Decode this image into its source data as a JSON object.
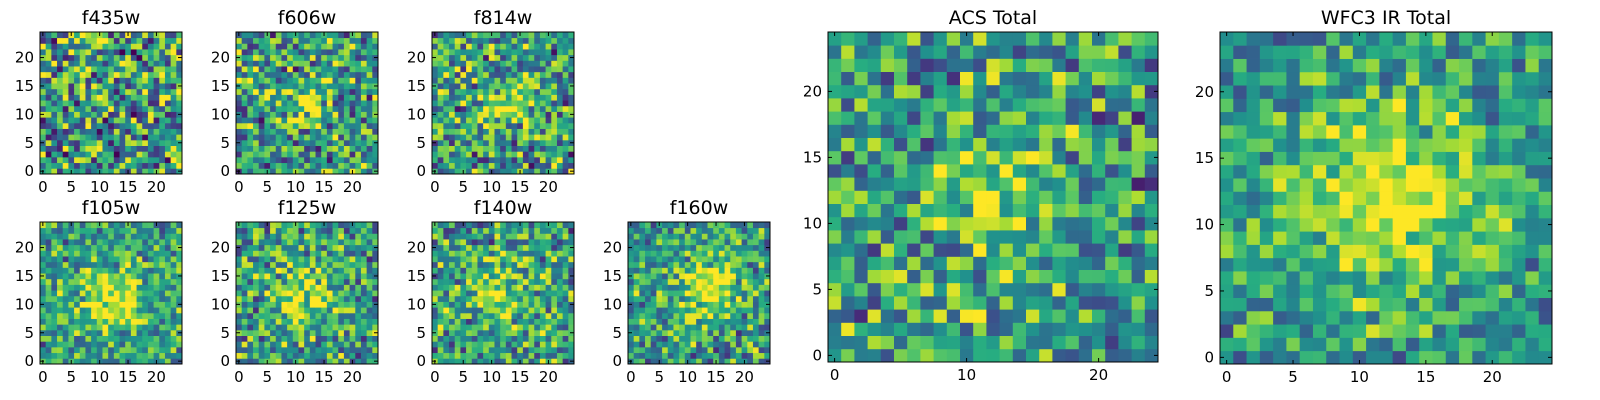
{
  "colormap": "viridis",
  "chart_data": [
    {
      "type": "heatmap",
      "title": "f435w",
      "grid_size": 25,
      "xlim": [
        -0.5,
        24.5
      ],
      "ylim": [
        -0.5,
        24.5
      ],
      "xticks": [
        0,
        5,
        10,
        15,
        20
      ],
      "yticks": [
        0,
        5,
        10,
        15,
        20
      ],
      "seed": 11,
      "blob": {
        "x": 12,
        "y": 12,
        "sigma": 5,
        "amp": 0.05
      },
      "noise": 0.95
    },
    {
      "type": "heatmap",
      "title": "f606w",
      "grid_size": 25,
      "xlim": [
        -0.5,
        24.5
      ],
      "ylim": [
        -0.5,
        24.5
      ],
      "xticks": [
        0,
        5,
        10,
        15,
        20
      ],
      "yticks": [
        0,
        5,
        10,
        15,
        20
      ],
      "seed": 23,
      "blob": {
        "x": 12,
        "y": 12,
        "sigma": 2.5,
        "amp": 0.35
      },
      "noise": 0.8
    },
    {
      "type": "heatmap",
      "title": "f814w",
      "grid_size": 25,
      "xlim": [
        -0.5,
        24.5
      ],
      "ylim": [
        -0.5,
        24.5
      ],
      "xticks": [
        0,
        5,
        10,
        15,
        20
      ],
      "yticks": [
        0,
        5,
        10,
        15,
        20
      ],
      "seed": 37,
      "blob": {
        "x": 13,
        "y": 12,
        "sigma": 3,
        "amp": 0.4
      },
      "noise": 0.8
    },
    {
      "type": "heatmap",
      "title": "f105w",
      "grid_size": 25,
      "xlim": [
        -0.5,
        24.5
      ],
      "ylim": [
        -0.5,
        24.5
      ],
      "xticks": [
        0,
        5,
        10,
        15,
        20
      ],
      "yticks": [
        0,
        5,
        10,
        15,
        20
      ],
      "seed": 41,
      "blob": {
        "x": 12,
        "y": 11,
        "sigma": 4,
        "amp": 0.45
      },
      "noise": 0.6
    },
    {
      "type": "heatmap",
      "title": "f125w",
      "grid_size": 25,
      "xlim": [
        -0.5,
        24.5
      ],
      "ylim": [
        -0.5,
        24.5
      ],
      "xticks": [
        0,
        5,
        10,
        15,
        20
      ],
      "yticks": [
        0,
        5,
        10,
        15,
        20
      ],
      "seed": 53,
      "blob": {
        "x": 11,
        "y": 12,
        "sigma": 4,
        "amp": 0.35
      },
      "noise": 0.7
    },
    {
      "type": "heatmap",
      "title": "f140w",
      "grid_size": 25,
      "xlim": [
        -0.5,
        24.5
      ],
      "ylim": [
        -0.5,
        24.5
      ],
      "xticks": [
        0,
        5,
        10,
        15,
        20
      ],
      "yticks": [
        0,
        5,
        10,
        15,
        20
      ],
      "seed": 67,
      "blob": {
        "x": 12,
        "y": 12,
        "sigma": 4,
        "amp": 0.3
      },
      "noise": 0.7
    },
    {
      "type": "heatmap",
      "title": "f160w",
      "grid_size": 25,
      "xlim": [
        -0.5,
        24.5
      ],
      "ylim": [
        -0.5,
        24.5
      ],
      "xticks": [
        0,
        5,
        10,
        15,
        20
      ],
      "yticks": [
        0,
        5,
        10,
        15,
        20
      ],
      "seed": 79,
      "blob": {
        "x": 14,
        "y": 13,
        "sigma": 3.5,
        "amp": 0.5
      },
      "noise": 0.65
    },
    {
      "type": "heatmap",
      "title": "ACS Total",
      "grid_size": 25,
      "xlim": [
        -0.5,
        24.5
      ],
      "ylim": [
        -0.5,
        24.5
      ],
      "xticks": [
        0,
        10,
        20
      ],
      "yticks": [
        0,
        5,
        10,
        15,
        20
      ],
      "seed": 97,
      "blob": {
        "x": 12,
        "y": 12,
        "sigma": 3,
        "amp": 0.4
      },
      "noise": 0.7
    },
    {
      "type": "heatmap",
      "title": "WFC3 IR Total",
      "grid_size": 25,
      "xlim": [
        -0.5,
        24.5
      ],
      "ylim": [
        -0.5,
        24.5
      ],
      "xticks": [
        0,
        5,
        10,
        15,
        20
      ],
      "yticks": [
        0,
        5,
        10,
        15,
        20
      ],
      "seed": 131,
      "blob": {
        "x": 12,
        "y": 12,
        "sigma": 4.5,
        "amp": 0.5
      },
      "noise": 0.5
    }
  ]
}
